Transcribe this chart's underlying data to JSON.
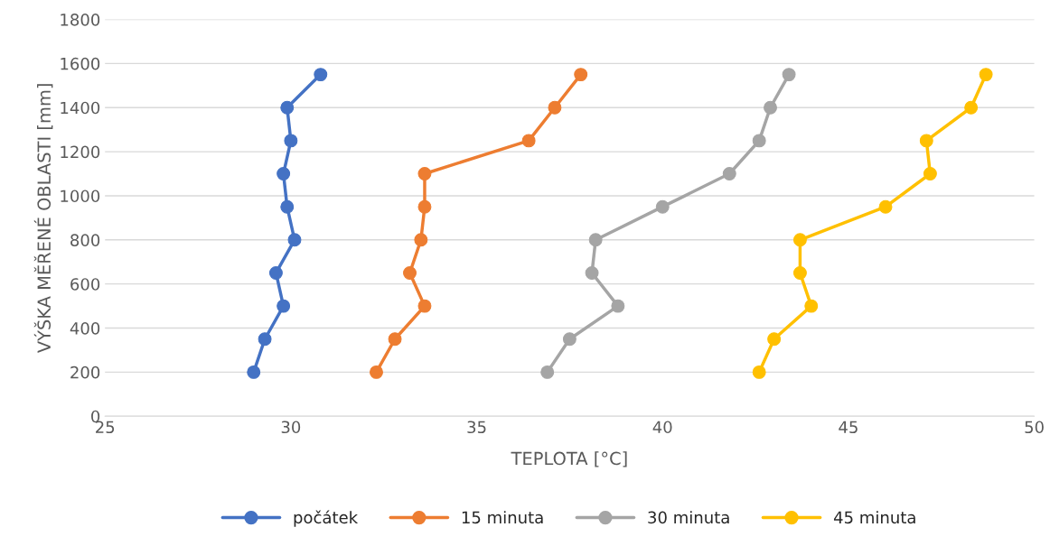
{
  "chart_data": {
    "type": "line",
    "xlabel": "TEPLOTA [°C]",
    "ylabel": "VÝŠKA MĚŘENÉ OBLASTI [mm]",
    "xlim": [
      25,
      50
    ],
    "xticks": [
      25,
      30,
      35,
      40,
      45,
      50
    ],
    "ylim": [
      0,
      1800
    ],
    "yticks": [
      0,
      200,
      400,
      600,
      800,
      1000,
      1200,
      1400,
      1600,
      1800
    ],
    "grid": "y",
    "legend": "bottom",
    "marker": "circle",
    "line_style": "solid",
    "series": [
      {
        "name": "počátek",
        "color": "#4472c4",
        "x": [
          29.0,
          29.3,
          29.8,
          29.6,
          30.1,
          29.9,
          29.8,
          30.0,
          29.9,
          30.8
        ],
        "values": [
          200,
          350,
          500,
          650,
          800,
          950,
          1100,
          1250,
          1400,
          1550
        ]
      },
      {
        "name": "15 minuta",
        "color": "#ed7d31",
        "x": [
          32.3,
          32.8,
          33.6,
          33.2,
          33.5,
          33.6,
          33.6,
          36.4,
          37.1,
          37.8
        ],
        "values": [
          200,
          350,
          500,
          650,
          800,
          950,
          1100,
          1250,
          1400,
          1550
        ]
      },
      {
        "name": "30 minuta",
        "color": "#a5a5a5",
        "x": [
          36.9,
          37.5,
          38.8,
          38.1,
          38.2,
          40.0,
          41.8,
          42.6,
          42.9,
          43.4
        ],
        "values": [
          200,
          350,
          500,
          650,
          800,
          950,
          1100,
          1250,
          1400,
          1550
        ]
      },
      {
        "name": "45 minuta",
        "color": "#ffc000",
        "x": [
          42.6,
          43.0,
          44.0,
          43.7,
          43.7,
          46.0,
          47.2,
          47.1,
          48.3,
          48.7
        ],
        "values": [
          200,
          350,
          500,
          650,
          800,
          950,
          1100,
          1250,
          1400,
          1550
        ]
      }
    ]
  }
}
